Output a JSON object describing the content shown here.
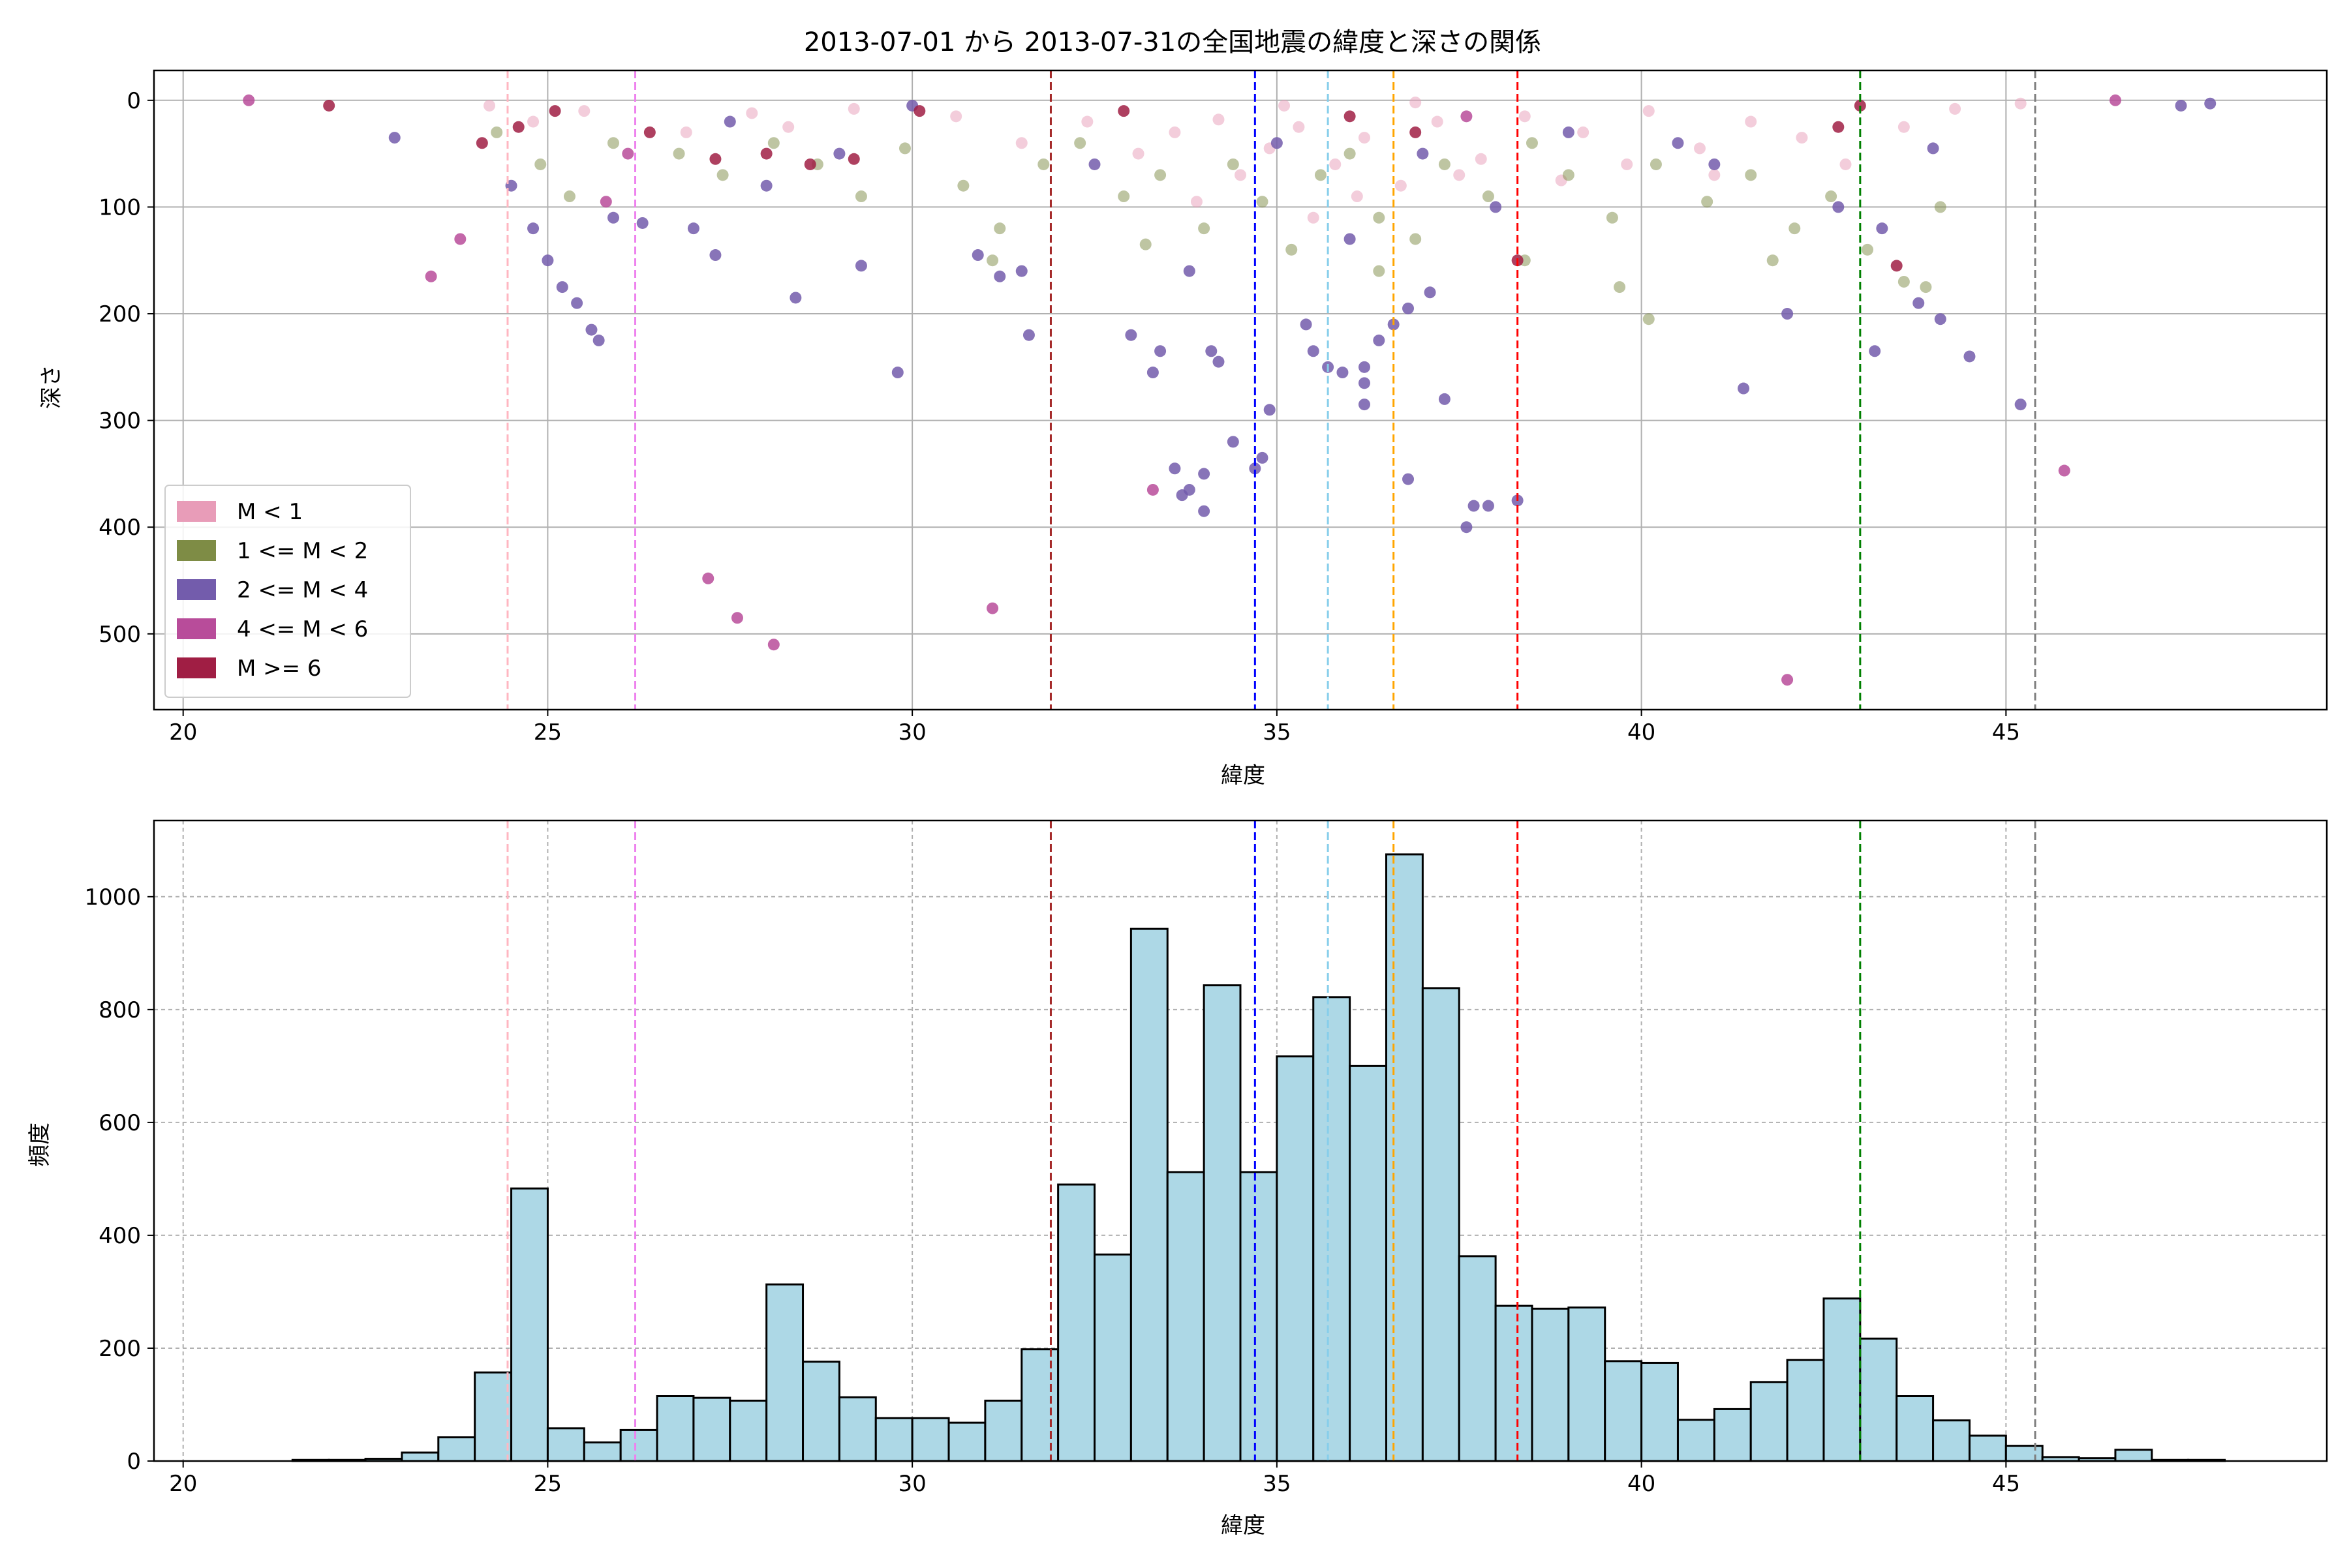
{
  "chart_data": [
    {
      "type": "scatter",
      "title": "2013-07-01 から 2013-07-31の全国地震の緯度と深さの関係",
      "xlabel": "緯度",
      "ylabel": "深さ",
      "xlim": [
        19.6,
        49.4
      ],
      "ylim": [
        571,
        -28
      ],
      "y_inverted": true,
      "xticks": [
        20,
        25,
        30,
        35,
        40,
        45
      ],
      "yticks": [
        0,
        100,
        200,
        300,
        400,
        500
      ],
      "grid": true,
      "legend_position": "lower-left",
      "legend": [
        {
          "label": "M < 1",
          "color": "#e89cb8"
        },
        {
          "label": "1 <= M < 2",
          "color": "#7e8c45"
        },
        {
          "label": "2 <= M < 4",
          "color": "#735cac"
        },
        {
          "label": "4 <= M < 6",
          "color": "#b84c9a"
        },
        {
          "label": "M >= 6",
          "color": "#a01e44"
        }
      ],
      "vlines": [
        {
          "x": 24.45,
          "color": "#ffb6c1"
        },
        {
          "x": 26.2,
          "color": "#ee82ee"
        },
        {
          "x": 31.9,
          "color": "#a52a2a"
        },
        {
          "x": 34.7,
          "color": "#0000ff"
        },
        {
          "x": 35.7,
          "color": "#87ceeb"
        },
        {
          "x": 36.6,
          "color": "#ffa500"
        },
        {
          "x": 38.3,
          "color": "#ff0000"
        },
        {
          "x": 43.0,
          "color": "#008000"
        },
        {
          "x": 45.4,
          "color": "#808080"
        }
      ],
      "series": [
        {
          "name": "M < 1",
          "color": "#e89cb8",
          "points": [
            [
              24.2,
              5
            ],
            [
              24.8,
              20
            ],
            [
              25.5,
              10
            ],
            [
              26.9,
              30
            ],
            [
              27.8,
              12
            ],
            [
              28.3,
              25
            ],
            [
              29.2,
              8
            ],
            [
              30.6,
              15
            ],
            [
              31.5,
              40
            ],
            [
              32.4,
              20
            ],
            [
              33.1,
              50
            ],
            [
              33.6,
              30
            ],
            [
              34.2,
              18
            ],
            [
              34.9,
              45
            ],
            [
              35.3,
              25
            ],
            [
              35.8,
              60
            ],
            [
              36.2,
              35
            ],
            [
              36.7,
              80
            ],
            [
              37.2,
              20
            ],
            [
              37.8,
              55
            ],
            [
              38.4,
              15
            ],
            [
              39.2,
              30
            ],
            [
              40.1,
              10
            ],
            [
              40.8,
              45
            ],
            [
              41.5,
              20
            ],
            [
              42.2,
              35
            ],
            [
              42.8,
              60
            ],
            [
              43.6,
              25
            ],
            [
              44.3,
              8
            ],
            [
              45.2,
              3
            ],
            [
              35.5,
              110
            ],
            [
              36.1,
              90
            ],
            [
              34.5,
              70
            ],
            [
              33.9,
              95
            ],
            [
              37.5,
              70
            ],
            [
              38.9,
              75
            ],
            [
              41.0,
              70
            ],
            [
              39.8,
              60
            ],
            [
              35.1,
              5
            ],
            [
              36.9,
              2
            ]
          ]
        },
        {
          "name": "1 <= M < 2",
          "color": "#7e8c45",
          "points": [
            [
              24.3,
              30
            ],
            [
              24.9,
              60
            ],
            [
              25.3,
              90
            ],
            [
              25.9,
              40
            ],
            [
              26.8,
              50
            ],
            [
              27.4,
              70
            ],
            [
              28.1,
              40
            ],
            [
              28.7,
              60
            ],
            [
              29.3,
              90
            ],
            [
              29.9,
              45
            ],
            [
              30.7,
              80
            ],
            [
              31.2,
              120
            ],
            [
              31.8,
              60
            ],
            [
              32.3,
              40
            ],
            [
              32.9,
              90
            ],
            [
              33.4,
              70
            ],
            [
              34.0,
              120
            ],
            [
              34.4,
              60
            ],
            [
              34.8,
              95
            ],
            [
              35.2,
              140
            ],
            [
              35.6,
              70
            ],
            [
              36.0,
              50
            ],
            [
              36.4,
              110
            ],
            [
              36.9,
              130
            ],
            [
              37.3,
              60
            ],
            [
              37.9,
              90
            ],
            [
              38.5,
              40
            ],
            [
              39.0,
              70
            ],
            [
              39.6,
              110
            ],
            [
              40.2,
              60
            ],
            [
              40.9,
              95
            ],
            [
              41.5,
              70
            ],
            [
              42.1,
              120
            ],
            [
              42.6,
              90
            ],
            [
              43.1,
              140
            ],
            [
              43.6,
              170
            ],
            [
              44.1,
              100
            ],
            [
              31.1,
              150
            ],
            [
              33.2,
              135
            ],
            [
              36.4,
              160
            ],
            [
              38.4,
              150
            ],
            [
              39.7,
              175
            ],
            [
              40.1,
              205
            ],
            [
              41.8,
              150
            ],
            [
              43.9,
              175
            ]
          ]
        },
        {
          "name": "2 <= M < 4",
          "color": "#735cac",
          "points": [
            [
              22.9,
              35
            ],
            [
              24.5,
              80
            ],
            [
              24.8,
              120
            ],
            [
              25.0,
              150
            ],
            [
              25.2,
              175
            ],
            [
              25.4,
              190
            ],
            [
              25.6,
              215
            ],
            [
              25.7,
              225
            ],
            [
              25.9,
              110
            ],
            [
              26.3,
              115
            ],
            [
              27.0,
              120
            ],
            [
              27.3,
              145
            ],
            [
              28.4,
              185
            ],
            [
              29.3,
              155
            ],
            [
              29.8,
              255
            ],
            [
              30.9,
              145
            ],
            [
              31.2,
              165
            ],
            [
              31.5,
              160
            ],
            [
              31.6,
              220
            ],
            [
              33.0,
              220
            ],
            [
              33.4,
              235
            ],
            [
              33.3,
              255
            ],
            [
              33.8,
              160
            ],
            [
              34.1,
              235
            ],
            [
              34.2,
              245
            ],
            [
              33.6,
              345
            ],
            [
              34.0,
              350
            ],
            [
              33.8,
              365
            ],
            [
              33.7,
              370
            ],
            [
              34.0,
              385
            ],
            [
              34.4,
              320
            ],
            [
              34.8,
              335
            ],
            [
              34.7,
              345
            ],
            [
              34.9,
              290
            ],
            [
              35.4,
              210
            ],
            [
              35.5,
              235
            ],
            [
              35.7,
              250
            ],
            [
              35.9,
              255
            ],
            [
              36.2,
              250
            ],
            [
              36.2,
              265
            ],
            [
              36.2,
              285
            ],
            [
              36.4,
              225
            ],
            [
              36.6,
              210
            ],
            [
              36.8,
              195
            ],
            [
              37.1,
              180
            ],
            [
              37.3,
              280
            ],
            [
              36.8,
              355
            ],
            [
              37.6,
              400
            ],
            [
              37.7,
              380
            ],
            [
              37.9,
              380
            ],
            [
              38.3,
              375
            ],
            [
              41.4,
              270
            ],
            [
              42.0,
              200
            ],
            [
              43.2,
              235
            ],
            [
              43.8,
              190
            ],
            [
              44.5,
              240
            ],
            [
              44.1,
              205
            ],
            [
              45.2,
              285
            ],
            [
              47.8,
              3
            ],
            [
              47.4,
              5
            ],
            [
              39.0,
              30
            ],
            [
              40.5,
              40
            ],
            [
              35.0,
              40
            ],
            [
              37.0,
              50
            ],
            [
              30.0,
              5
            ],
            [
              27.5,
              20
            ],
            [
              44.0,
              45
            ],
            [
              28.0,
              80
            ],
            [
              32.5,
              60
            ],
            [
              42.7,
              100
            ],
            [
              43.3,
              120
            ],
            [
              29.0,
              50
            ],
            [
              36.0,
              130
            ],
            [
              38.0,
              100
            ],
            [
              41.0,
              60
            ]
          ]
        },
        {
          "name": "4 <= M < 6",
          "color": "#b84c9a",
          "points": [
            [
              20.9,
              0
            ],
            [
              23.4,
              165
            ],
            [
              23.8,
              130
            ],
            [
              27.2,
              448
            ],
            [
              27.6,
              485
            ],
            [
              28.1,
              510
            ],
            [
              31.1,
              476
            ],
            [
              33.3,
              365
            ],
            [
              42.0,
              543
            ],
            [
              45.8,
              347
            ],
            [
              25.8,
              95
            ],
            [
              26.1,
              50
            ],
            [
              37.6,
              15
            ],
            [
              46.5,
              0
            ]
          ]
        },
        {
          "name": "M >= 6",
          "color": "#a01e44",
          "points": [
            [
              22.0,
              5
            ],
            [
              24.1,
              40
            ],
            [
              24.6,
              25
            ],
            [
              25.1,
              10
            ],
            [
              26.4,
              30
            ],
            [
              27.3,
              55
            ],
            [
              28.0,
              50
            ],
            [
              28.6,
              60
            ],
            [
              29.2,
              55
            ],
            [
              30.1,
              10
            ],
            [
              32.9,
              10
            ],
            [
              36.9,
              30
            ],
            [
              38.3,
              150
            ],
            [
              42.7,
              25
            ],
            [
              43.5,
              155
            ],
            [
              43.0,
              5
            ],
            [
              36.0,
              15
            ]
          ]
        }
      ]
    },
    {
      "type": "bar",
      "xlabel": "緯度",
      "ylabel": "頻度",
      "xlim": [
        19.6,
        49.4
      ],
      "ylim": [
        0,
        1135
      ],
      "xticks": [
        20,
        25,
        30,
        35,
        40,
        45
      ],
      "yticks": [
        0,
        200,
        400,
        600,
        800,
        1000
      ],
      "grid": true,
      "bar_color": "#add8e6",
      "bin_edges": [
        21.5,
        22.0,
        22.5,
        23.0,
        23.5,
        24.0,
        24.5,
        25.0,
        25.5,
        26.0,
        26.5,
        27.0,
        27.5,
        28.0,
        28.5,
        29.0,
        29.5,
        30.0,
        30.5,
        31.0,
        31.5,
        32.0,
        32.5,
        33.0,
        33.5,
        34.0,
        34.5,
        35.0,
        35.5,
        36.0,
        36.5,
        37.0,
        37.5,
        38.0,
        38.5,
        39.0,
        39.5,
        40.0,
        40.5,
        41.0,
        41.5,
        42.0,
        42.5,
        43.0,
        43.5,
        44.0,
        44.5,
        45.0,
        45.5,
        46.0,
        46.5,
        47.0,
        47.5,
        48.0
      ],
      "values": [
        2,
        2,
        4,
        15,
        42,
        157,
        483,
        58,
        33,
        55,
        115,
        112,
        107,
        313,
        176,
        113,
        76,
        76,
        68,
        107,
        198,
        490,
        366,
        943,
        512,
        843,
        512,
        717,
        822,
        700,
        1075,
        838,
        363,
        275,
        270,
        272,
        177,
        174,
        73,
        92,
        140,
        179,
        288,
        217,
        115,
        72,
        45,
        27,
        7,
        5,
        20,
        2,
        2
      ],
      "vlines": [
        {
          "x": 24.45,
          "color": "#ffb6c1"
        },
        {
          "x": 26.2,
          "color": "#ee82ee"
        },
        {
          "x": 31.9,
          "color": "#a52a2a"
        },
        {
          "x": 34.7,
          "color": "#0000ff"
        },
        {
          "x": 35.7,
          "color": "#87ceeb"
        },
        {
          "x": 36.6,
          "color": "#ffa500"
        },
        {
          "x": 38.3,
          "color": "#ff0000"
        },
        {
          "x": 43.0,
          "color": "#008000"
        },
        {
          "x": 45.4,
          "color": "#808080"
        }
      ]
    }
  ]
}
